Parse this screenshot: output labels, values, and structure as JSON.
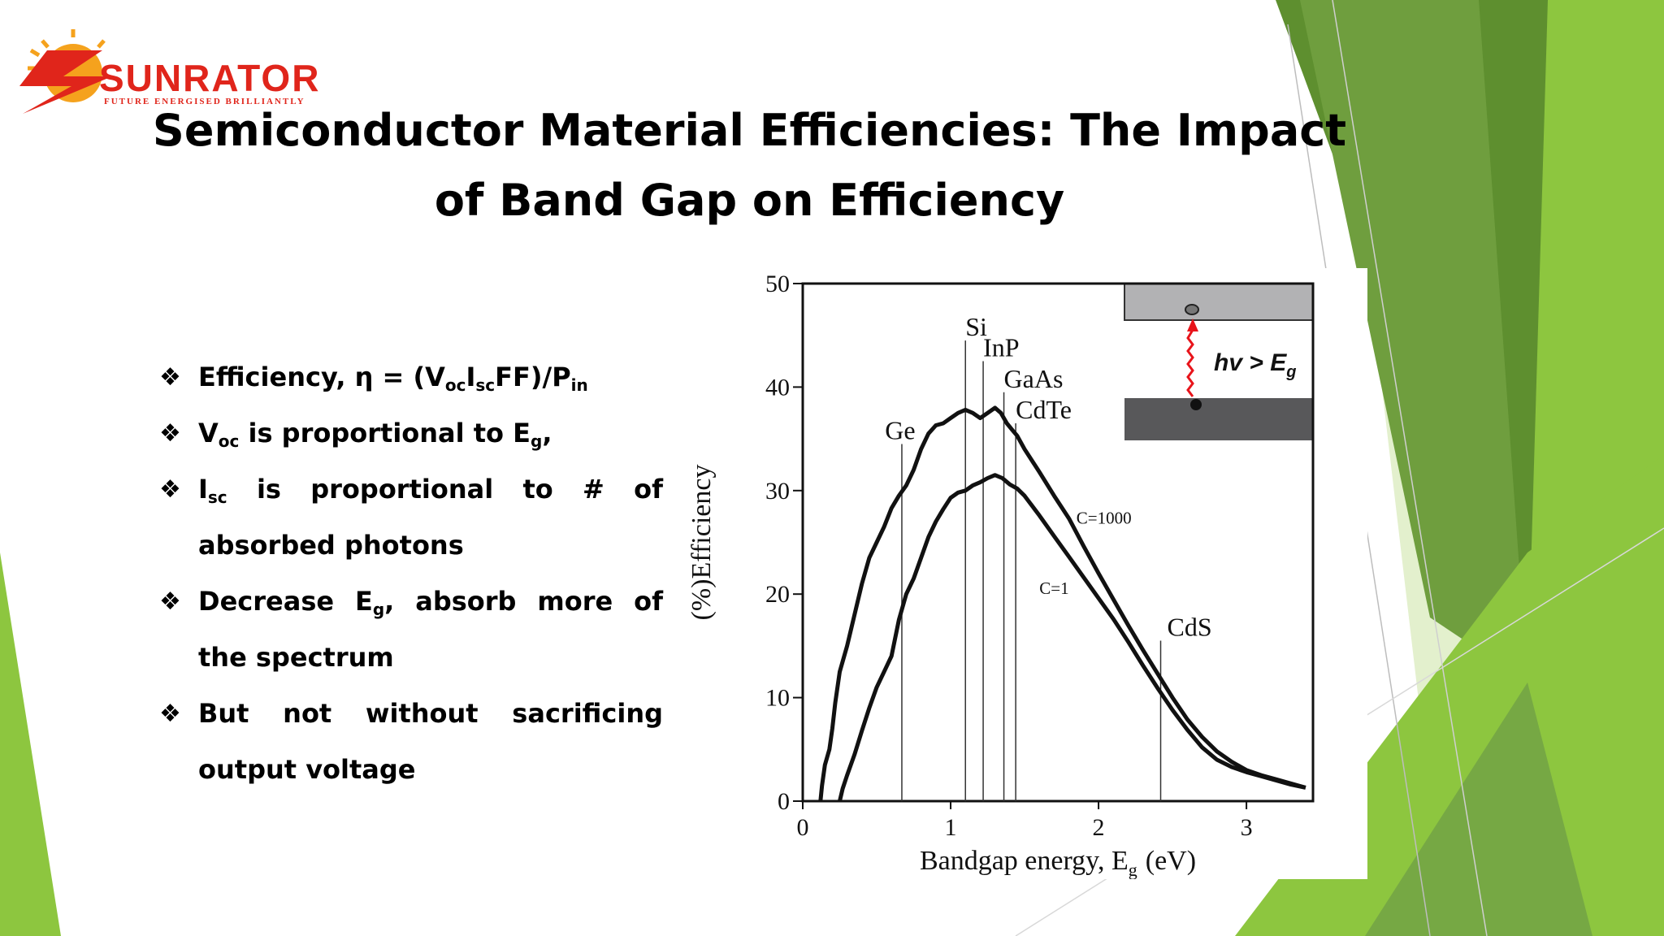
{
  "brand": {
    "name": "SUNRATOR",
    "tagline": "FUTURE ENERGISED BRILLIANTLY",
    "colors": {
      "red": "#e0251b",
      "orange": "#f5a21d",
      "dark": "#1f1f1f"
    }
  },
  "slide": {
    "title": "Semiconductor Material Efficiencies: The Impact of Band Gap on Efficiency",
    "bullet_glyph": "❖",
    "bullets": [
      {
        "parts": [
          {
            "t": "Efficiency, η = (V"
          },
          {
            "t": "oc",
            "sub": true
          },
          {
            "t": "I"
          },
          {
            "t": "sc",
            "sub": true
          },
          {
            "t": "FF)/P"
          },
          {
            "t": "in",
            "sub": true
          }
        ]
      },
      {
        "parts": [
          {
            "t": "V"
          },
          {
            "t": "oc",
            "sub": true
          },
          {
            "t": " is proportional to E"
          },
          {
            "t": "g",
            "sub": true
          },
          {
            "t": ","
          }
        ]
      },
      {
        "parts": [
          {
            "t": "I"
          },
          {
            "t": "sc",
            "sub": true
          },
          {
            "t": " is proportional to # of absorbed photons"
          }
        ]
      },
      {
        "parts": [
          {
            "t": "Decrease E"
          },
          {
            "t": "g",
            "sub": true
          },
          {
            "t": ", absorb more of the spectrum"
          }
        ]
      },
      {
        "parts": [
          {
            "t": "But not without sacrificing output voltage"
          }
        ]
      }
    ],
    "theme_colors": [
      "#8dc63f",
      "#76a844",
      "#5e8f2f",
      "#a9d46a",
      "#cfe6a7"
    ]
  },
  "chart_data": {
    "type": "line",
    "xlabel": "Bandgap energy, E",
    "xlabel_sub": "g",
    "xlabel_unit": "(eV)",
    "ylabel": "(%)Efficiency",
    "xlim": [
      0,
      3.45
    ],
    "ylim": [
      0,
      50
    ],
    "xticks": [
      0,
      1,
      2,
      3
    ],
    "yticks": [
      0,
      10,
      20,
      30,
      40,
      50
    ],
    "grid": false,
    "series": [
      {
        "name": "C=1000",
        "label_at": [
          1.85,
          26.8
        ],
        "points": [
          [
            0.12,
            0
          ],
          [
            0.13,
            1.5
          ],
          [
            0.15,
            3.5
          ],
          [
            0.18,
            5
          ],
          [
            0.2,
            7
          ],
          [
            0.22,
            9.5
          ],
          [
            0.25,
            12.5
          ],
          [
            0.3,
            15
          ],
          [
            0.35,
            18
          ],
          [
            0.4,
            21
          ],
          [
            0.45,
            23.5
          ],
          [
            0.5,
            25
          ],
          [
            0.55,
            26.5
          ],
          [
            0.6,
            28.3
          ],
          [
            0.65,
            29.5
          ],
          [
            0.7,
            30.5
          ],
          [
            0.75,
            32
          ],
          [
            0.8,
            34
          ],
          [
            0.85,
            35.5
          ],
          [
            0.9,
            36.3
          ],
          [
            0.95,
            36.5
          ],
          [
            1.0,
            37
          ],
          [
            1.05,
            37.5
          ],
          [
            1.1,
            37.8
          ],
          [
            1.15,
            37.5
          ],
          [
            1.2,
            37
          ],
          [
            1.25,
            37.5
          ],
          [
            1.3,
            38
          ],
          [
            1.34,
            37.5
          ],
          [
            1.38,
            36.5
          ],
          [
            1.42,
            35.8
          ],
          [
            1.45,
            35.3
          ],
          [
            1.5,
            34
          ],
          [
            1.6,
            31.8
          ],
          [
            1.7,
            29.5
          ],
          [
            1.8,
            27.3
          ],
          [
            1.9,
            24.6
          ],
          [
            2.0,
            22
          ],
          [
            2.1,
            19.5
          ],
          [
            2.2,
            17
          ],
          [
            2.3,
            14.6
          ],
          [
            2.4,
            12.3
          ],
          [
            2.5,
            10
          ],
          [
            2.6,
            7.9
          ],
          [
            2.7,
            6.2
          ],
          [
            2.8,
            4.8
          ],
          [
            2.9,
            3.8
          ],
          [
            3.0,
            3.0
          ],
          [
            3.1,
            2.5
          ],
          [
            3.2,
            2.1
          ],
          [
            3.3,
            1.7
          ],
          [
            3.4,
            1.3
          ]
        ]
      },
      {
        "name": "C=1",
        "label_at": [
          1.6,
          20
        ],
        "points": [
          [
            0.25,
            0
          ],
          [
            0.27,
            1.2
          ],
          [
            0.3,
            2.5
          ],
          [
            0.35,
            4.5
          ],
          [
            0.4,
            6.8
          ],
          [
            0.45,
            9
          ],
          [
            0.5,
            11
          ],
          [
            0.55,
            12.5
          ],
          [
            0.6,
            14
          ],
          [
            0.65,
            17.5
          ],
          [
            0.7,
            20
          ],
          [
            0.75,
            21.5
          ],
          [
            0.8,
            23.5
          ],
          [
            0.85,
            25.5
          ],
          [
            0.9,
            27
          ],
          [
            0.95,
            28.2
          ],
          [
            1.0,
            29.3
          ],
          [
            1.05,
            29.8
          ],
          [
            1.1,
            30
          ],
          [
            1.15,
            30.5
          ],
          [
            1.2,
            30.8
          ],
          [
            1.25,
            31.2
          ],
          [
            1.3,
            31.5
          ],
          [
            1.35,
            31.2
          ],
          [
            1.4,
            30.6
          ],
          [
            1.45,
            30.2
          ],
          [
            1.5,
            29.5
          ],
          [
            1.6,
            27.6
          ],
          [
            1.7,
            25.6
          ],
          [
            1.8,
            23.6
          ],
          [
            1.9,
            21.6
          ],
          [
            2.0,
            19.6
          ],
          [
            2.1,
            17.6
          ],
          [
            2.2,
            15.4
          ],
          [
            2.3,
            13.1
          ],
          [
            2.4,
            10.9
          ],
          [
            2.5,
            8.8
          ],
          [
            2.6,
            6.9
          ],
          [
            2.7,
            5.2
          ],
          [
            2.8,
            4.0
          ],
          [
            2.9,
            3.3
          ],
          [
            3.0,
            2.8
          ],
          [
            3.1,
            2.4
          ],
          [
            3.2,
            2.0
          ],
          [
            3.3,
            1.6
          ],
          [
            3.4,
            1.3
          ]
        ]
      }
    ],
    "annotations": [
      {
        "text": "Ge",
        "x": 0.67,
        "top": 34.5
      },
      {
        "text": "Si",
        "x": 1.1,
        "top": 44.5
      },
      {
        "text": "InP",
        "x": 1.22,
        "top": 42.5
      },
      {
        "text": "GaAs",
        "x": 1.36,
        "top": 39.5
      },
      {
        "text": "CdTe",
        "x": 1.44,
        "top": 36.5
      },
      {
        "text": "CdS",
        "x": 2.42,
        "top": 15.5
      }
    ],
    "inset": {
      "text": "hv > E",
      "text_sub": "g",
      "photon_color": "#e8141b",
      "upper_band_color": "#b2b2b4",
      "lower_band_color": "#58585a"
    }
  }
}
